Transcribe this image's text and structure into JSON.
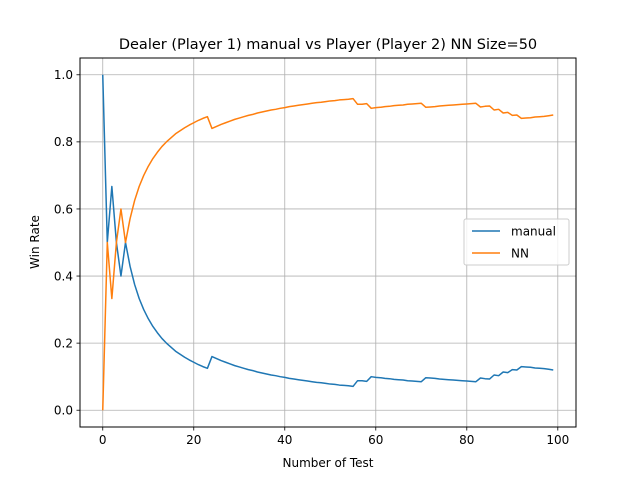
{
  "chart_data": {
    "type": "line",
    "title": "Dealer (Player 1) manual vs Player (Player 2) NN Size=50",
    "xlabel": "Number of Test",
    "ylabel": "Win Rate",
    "xlim": [
      -5,
      104
    ],
    "ylim": [
      -0.05,
      1.05
    ],
    "xticks": [
      0,
      20,
      40,
      60,
      80,
      100
    ],
    "xtick_labels": [
      "0",
      "20",
      "40",
      "60",
      "80",
      "100"
    ],
    "yticks": [
      0.0,
      0.2,
      0.4,
      0.6,
      0.8,
      1.0
    ],
    "ytick_labels": [
      "0.0",
      "0.2",
      "0.4",
      "0.6",
      "0.8",
      "1.0"
    ],
    "grid": true,
    "legend_position": "center-right",
    "series": [
      {
        "name": "manual",
        "color": "#1f77b4",
        "x": [
          0,
          1,
          2,
          3,
          4,
          5,
          6,
          7,
          8,
          9,
          10,
          11,
          12,
          13,
          14,
          15,
          16,
          17,
          18,
          19,
          20,
          21,
          22,
          23,
          24,
          25,
          26,
          27,
          28,
          29,
          30,
          31,
          32,
          33,
          34,
          35,
          36,
          37,
          38,
          39,
          40,
          41,
          42,
          43,
          44,
          45,
          46,
          47,
          48,
          49,
          50,
          51,
          52,
          53,
          54,
          55,
          56,
          57,
          58,
          59,
          60,
          61,
          62,
          63,
          64,
          65,
          66,
          67,
          68,
          69,
          70,
          71,
          72,
          73,
          74,
          75,
          76,
          77,
          78,
          79,
          80,
          81,
          82,
          83,
          84,
          85,
          86,
          87,
          88,
          89,
          90,
          91,
          92,
          93,
          94,
          95,
          96,
          97,
          98,
          99
        ],
        "y": [
          1.0,
          0.5,
          0.667,
          0.5,
          0.4,
          0.5,
          0.429,
          0.375,
          0.333,
          0.3,
          0.273,
          0.25,
          0.231,
          0.214,
          0.2,
          0.188,
          0.176,
          0.167,
          0.158,
          0.15,
          0.143,
          0.136,
          0.13,
          0.125,
          0.16,
          0.154,
          0.148,
          0.143,
          0.138,
          0.133,
          0.129,
          0.125,
          0.121,
          0.118,
          0.114,
          0.111,
          0.108,
          0.105,
          0.103,
          0.1,
          0.098,
          0.095,
          0.093,
          0.091,
          0.089,
          0.087,
          0.085,
          0.083,
          0.082,
          0.08,
          0.078,
          0.077,
          0.075,
          0.074,
          0.073,
          0.071,
          0.088,
          0.088,
          0.086,
          0.1,
          0.098,
          0.097,
          0.095,
          0.094,
          0.092,
          0.091,
          0.09,
          0.088,
          0.087,
          0.086,
          0.085,
          0.097,
          0.096,
          0.095,
          0.093,
          0.092,
          0.091,
          0.09,
          0.089,
          0.088,
          0.087,
          0.086,
          0.085,
          0.096,
          0.094,
          0.093,
          0.105,
          0.103,
          0.114,
          0.112,
          0.121,
          0.12,
          0.13,
          0.129,
          0.128,
          0.126,
          0.125,
          0.124,
          0.122,
          0.12
        ]
      },
      {
        "name": "NN",
        "color": "#ff7f0e",
        "x": [
          0,
          1,
          2,
          3,
          4,
          5,
          6,
          7,
          8,
          9,
          10,
          11,
          12,
          13,
          14,
          15,
          16,
          17,
          18,
          19,
          20,
          21,
          22,
          23,
          24,
          25,
          26,
          27,
          28,
          29,
          30,
          31,
          32,
          33,
          34,
          35,
          36,
          37,
          38,
          39,
          40,
          41,
          42,
          43,
          44,
          45,
          46,
          47,
          48,
          49,
          50,
          51,
          52,
          53,
          54,
          55,
          56,
          57,
          58,
          59,
          60,
          61,
          62,
          63,
          64,
          65,
          66,
          67,
          68,
          69,
          70,
          71,
          72,
          73,
          74,
          75,
          76,
          77,
          78,
          79,
          80,
          81,
          82,
          83,
          84,
          85,
          86,
          87,
          88,
          89,
          90,
          91,
          92,
          93,
          94,
          95,
          96,
          97,
          98,
          99
        ],
        "y": [
          0.0,
          0.5,
          0.333,
          0.5,
          0.6,
          0.5,
          0.571,
          0.625,
          0.667,
          0.7,
          0.727,
          0.75,
          0.769,
          0.786,
          0.8,
          0.812,
          0.824,
          0.833,
          0.842,
          0.85,
          0.857,
          0.864,
          0.87,
          0.875,
          0.84,
          0.846,
          0.852,
          0.857,
          0.862,
          0.867,
          0.871,
          0.875,
          0.879,
          0.882,
          0.886,
          0.889,
          0.892,
          0.895,
          0.897,
          0.9,
          0.902,
          0.905,
          0.907,
          0.909,
          0.911,
          0.913,
          0.915,
          0.917,
          0.918,
          0.92,
          0.922,
          0.923,
          0.925,
          0.926,
          0.927,
          0.929,
          0.912,
          0.912,
          0.914,
          0.9,
          0.902,
          0.903,
          0.905,
          0.906,
          0.908,
          0.909,
          0.91,
          0.912,
          0.913,
          0.914,
          0.915,
          0.903,
          0.904,
          0.905,
          0.907,
          0.908,
          0.909,
          0.91,
          0.911,
          0.912,
          0.913,
          0.914,
          0.915,
          0.904,
          0.906,
          0.907,
          0.895,
          0.897,
          0.886,
          0.888,
          0.879,
          0.88,
          0.87,
          0.871,
          0.872,
          0.874,
          0.875,
          0.876,
          0.878,
          0.88
        ]
      }
    ]
  }
}
